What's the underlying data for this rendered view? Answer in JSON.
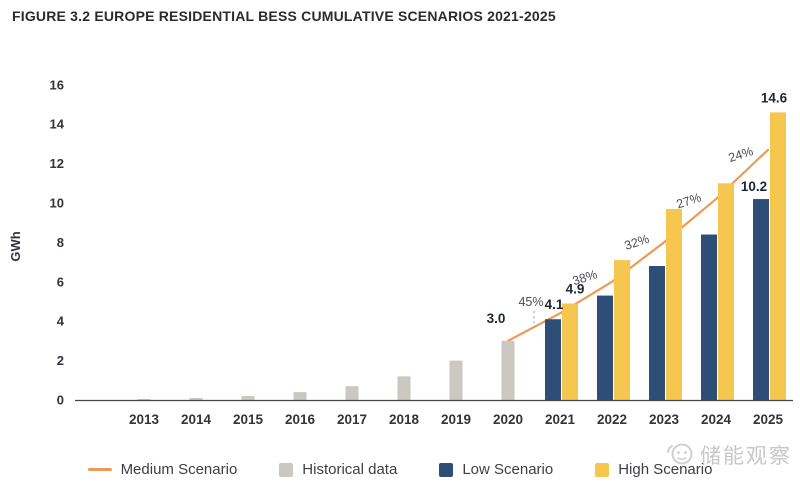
{
  "title": "FIGURE 3.2 EUROPE RESIDENTIAL BESS CUMULATIVE SCENARIOS 2021-2025",
  "y_axis": {
    "label": "GWh",
    "ticks": [
      0,
      2,
      4,
      6,
      8,
      10,
      12,
      14,
      16
    ]
  },
  "x_axis": {
    "years": [
      2013,
      2014,
      2015,
      2016,
      2017,
      2018,
      2019,
      2020,
      2021,
      2022,
      2023,
      2024,
      2025
    ]
  },
  "chart_data": {
    "type": "bar",
    "title": "FIGURE 3.2 EUROPE RESIDENTIAL BESS CUMULATIVE SCENARIOS 2021-2025",
    "xlabel": "",
    "ylabel": "GWh",
    "ylim": [
      0,
      16
    ],
    "grid": false,
    "legend_position": "bottom",
    "categories": [
      2013,
      2014,
      2015,
      2016,
      2017,
      2018,
      2019,
      2020,
      2021,
      2022,
      2023,
      2024,
      2025
    ],
    "series": [
      {
        "name": "Historical data",
        "type": "bar",
        "color": "#cbc7c1",
        "start_year": 2013,
        "values": [
          0.05,
          0.1,
          0.2,
          0.4,
          0.7,
          1.2,
          2.0,
          3.0
        ]
      },
      {
        "name": "Low Scenario",
        "type": "bar",
        "color": "#2d4e76",
        "start_year": 2021,
        "values": [
          4.1,
          5.3,
          6.8,
          8.4,
          10.2
        ]
      },
      {
        "name": "High Scenario",
        "type": "bar",
        "color": "#f6c74f",
        "start_year": 2021,
        "values": [
          4.9,
          7.1,
          9.7,
          11.0,
          14.6
        ]
      },
      {
        "name": "Medium Scenario",
        "type": "line",
        "color": "#ec9b57",
        "start_year": 2020,
        "values": [
          3.0,
          4.4,
          6.0,
          8.0,
          10.2,
          12.7
        ]
      }
    ],
    "growth_labels": [
      {
        "text": "45%",
        "between": [
          2020,
          2021
        ]
      },
      {
        "text": "38%",
        "between": [
          2021,
          2022
        ]
      },
      {
        "text": "32%",
        "between": [
          2022,
          2023
        ]
      },
      {
        "text": "27%",
        "between": [
          2023,
          2024
        ]
      },
      {
        "text": "24%",
        "between": [
          2024,
          2025
        ]
      }
    ],
    "value_labels": [
      {
        "text": "3.0",
        "series": "Historical data",
        "year": 2020
      },
      {
        "text": "4.1",
        "series": "Low Scenario",
        "year": 2021
      },
      {
        "text": "4.9",
        "series": "High Scenario",
        "year": 2021
      },
      {
        "text": "10.2",
        "series": "Low Scenario",
        "year": 2025
      },
      {
        "text": "14.6",
        "series": "High Scenario",
        "year": 2025
      }
    ]
  },
  "legend": {
    "items": [
      {
        "label": "Medium Scenario",
        "color": "#ec9b57",
        "swatch": "line"
      },
      {
        "label": "Historical data",
        "color": "#cbc7c1",
        "swatch": "square"
      },
      {
        "label": "Low Scenario",
        "color": "#2d4e76",
        "swatch": "square"
      },
      {
        "label": "High Scenario",
        "color": "#f6c74f",
        "swatch": "square"
      }
    ]
  },
  "watermark": {
    "text": "储能观察"
  },
  "colors": {
    "axis_line": "#45454c",
    "tick_text": "#33333c",
    "value_label": "#1d2633",
    "growth_label": "#4b4b55",
    "watermark": "#c7c7c7"
  }
}
